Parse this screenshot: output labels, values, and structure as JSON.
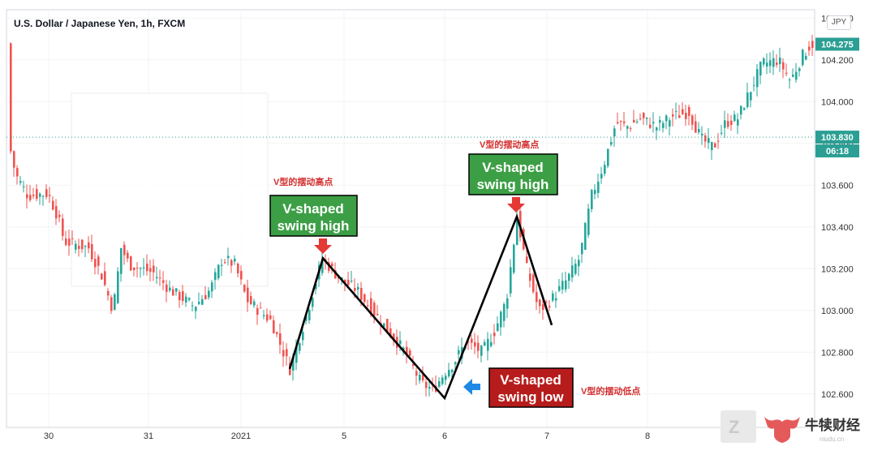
{
  "title": "U.S. Dollar / Japanese Yen, 1h, FXCM",
  "currency_badge": "JPY",
  "chart_data": {
    "type": "candlestick",
    "y_axis": {
      "min": 102.44,
      "max": 104.44,
      "ticks": [
        "104.400",
        "104.200",
        "104.000",
        "103.800",
        "103.600",
        "103.400",
        "103.200",
        "103.000",
        "102.800",
        "102.600"
      ]
    },
    "x_ticks": [
      "30",
      "31",
      "2021",
      "5",
      "6",
      "7",
      "8"
    ],
    "price_labels": {
      "last": "104.275",
      "reference": "103.830",
      "countdown": "06:18"
    },
    "colors": {
      "up": "#26a69a",
      "down": "#ef5350",
      "accent": "#2b9f94",
      "callout_green": "#3c9f45",
      "callout_red": "#b71c1c",
      "chinese_text": "#d32f2f",
      "arrow_red": "#e53935",
      "arrow_blue": "#1e88e5"
    },
    "swing_path": [
      {
        "x": 14.2,
        "y": 102.72
      },
      {
        "x": 15.8,
        "y": 103.25
      },
      {
        "x": 18.2,
        "y": 102.58
      },
      {
        "x": 19.9,
        "y": 103.45
      },
      {
        "x": 21.0,
        "y": 102.93
      }
    ],
    "annotations": [
      {
        "cn": "V型的摆动高点",
        "en_line1": "V-shaped",
        "en_line2": "swing high",
        "kind": "high"
      },
      {
        "cn": "V型的摆动高点",
        "en_line1": "V-shaped",
        "en_line2": "swing high",
        "kind": "high"
      },
      {
        "cn": "V型的摆动低点",
        "en_line1": "V-shaped",
        "en_line2": "swing low",
        "kind": "low"
      }
    ]
  },
  "watermark": {
    "brand": "牛犊财经",
    "sub": "niudu.cn"
  }
}
